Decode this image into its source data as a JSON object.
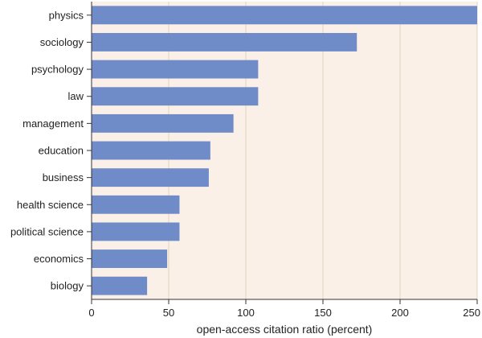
{
  "chart_data": {
    "type": "bar",
    "orientation": "horizontal",
    "categories": [
      "physics",
      "sociology",
      "psychology",
      "law",
      "management",
      "education",
      "business",
      "health science",
      "political science",
      "economics",
      "biology"
    ],
    "values": [
      250,
      172,
      108,
      108,
      92,
      77,
      76,
      57,
      57,
      49,
      36
    ],
    "xlabel": "open-access citation ratio (percent)",
    "ylabel": "",
    "xlim": [
      0,
      250
    ],
    "xticks": [
      0,
      50,
      100,
      150,
      200,
      250
    ],
    "grid": "vertical",
    "colors": {
      "bar": "#6f8bc8",
      "plot_background": "#fbf0e8",
      "grid": "#e6d3bd",
      "axis": "#333333"
    }
  }
}
